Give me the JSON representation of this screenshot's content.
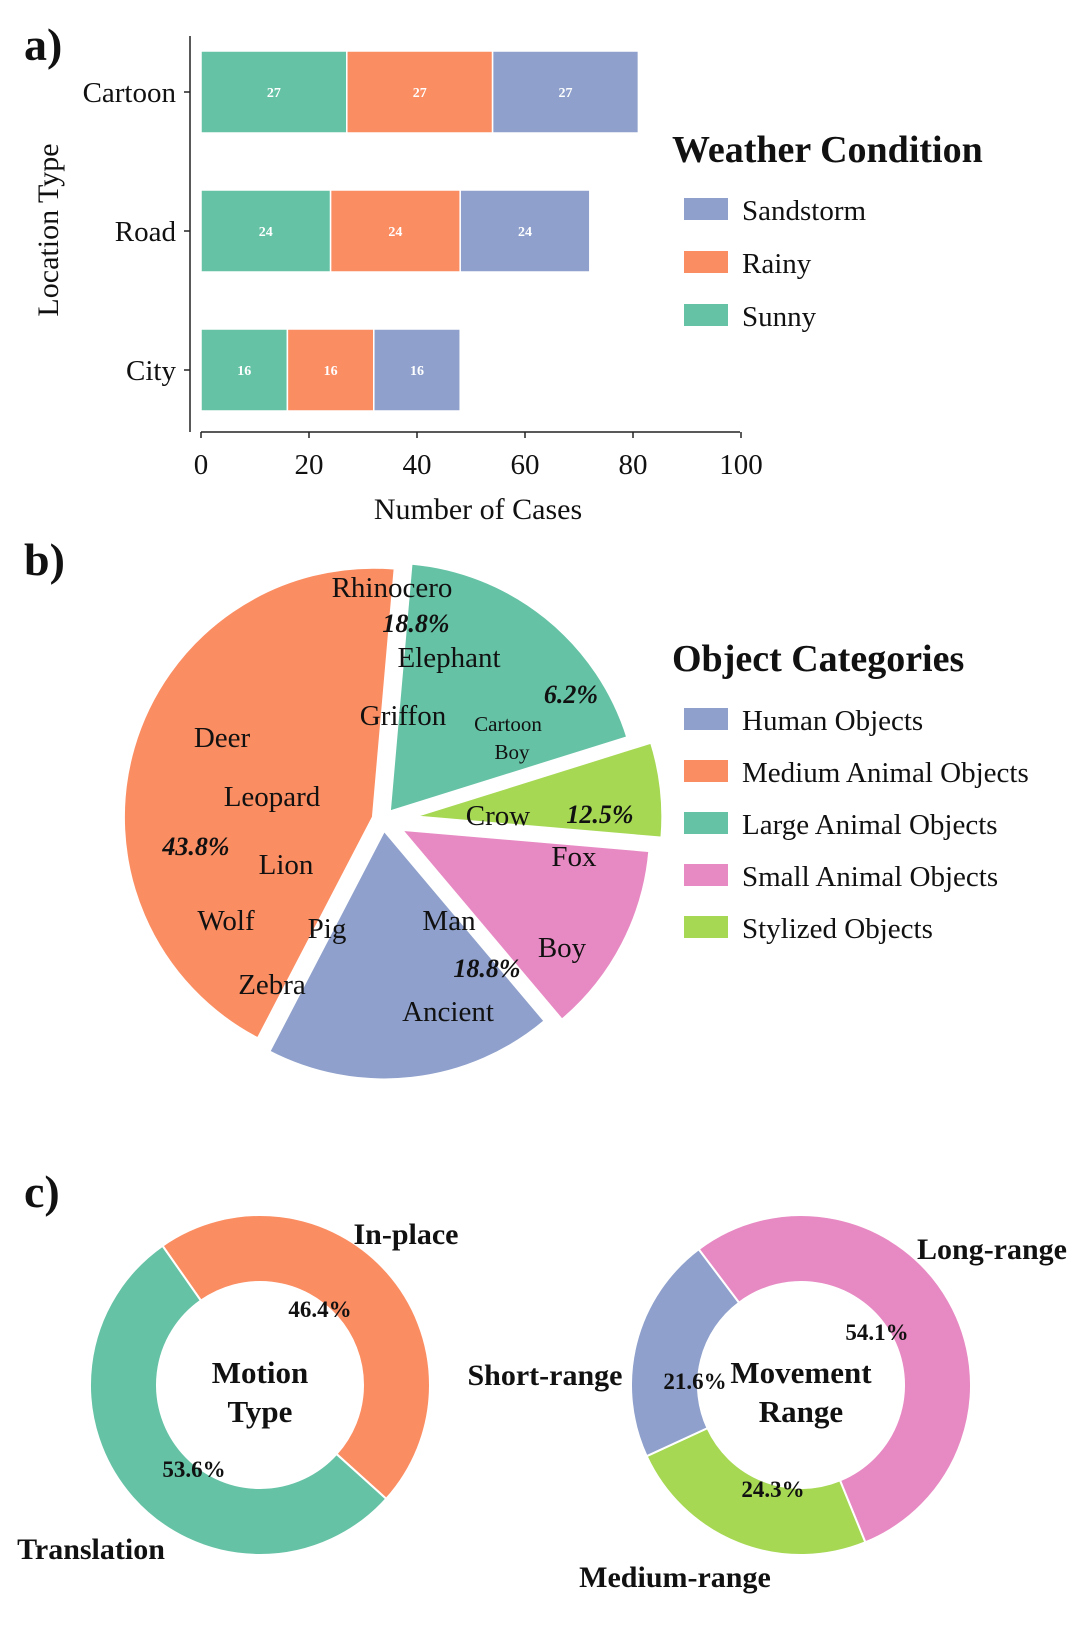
{
  "panels": {
    "a": {
      "label": "a)"
    },
    "b": {
      "label": "b)"
    },
    "c": {
      "label": "c)"
    }
  },
  "colors": {
    "sandstorm": "#8EA0CB",
    "rainy": "#FB8D62",
    "sunny": "#65C2A5",
    "human": "#8EA0CB",
    "medium_animal": "#FB8D62",
    "large_animal": "#65C2A5",
    "small_animal": "#E78AC3",
    "stylized": "#A6D853"
  },
  "chart_data": [
    {
      "type": "bar",
      "orientation": "horizontal",
      "stacked": true,
      "categories": [
        "Cartoon",
        "Road",
        "City"
      ],
      "series": [
        {
          "name": "Sunny",
          "values": [
            27,
            24,
            16
          ],
          "color": "#65C2A5"
        },
        {
          "name": "Rainy",
          "values": [
            27,
            24,
            16
          ],
          "color": "#FB8D62"
        },
        {
          "name": "Sandstorm",
          "values": [
            27,
            24,
            16
          ],
          "color": "#8EA0CB"
        }
      ],
      "xlabel": "Number of Cases",
      "ylabel": "Location Type",
      "xlim": [
        0,
        100
      ],
      "xticks": [
        "0",
        "20",
        "40",
        "60",
        "80",
        "100"
      ],
      "legend_title": "Weather Condition",
      "legend_order": [
        "Sandstorm",
        "Rainy",
        "Sunny"
      ],
      "legend_placement": "right",
      "grid": false
    },
    {
      "type": "pie",
      "legend_title": "Object Categories",
      "legend_placement": "right",
      "slices": [
        {
          "name": "Human Objects",
          "value": 18.8,
          "label": "18.8%",
          "items": [
            "Man",
            "Boy",
            "Ancient"
          ],
          "color": "#8EA0CB"
        },
        {
          "name": "Medium Animal Objects",
          "value": 43.8,
          "label": "43.8%",
          "items": [
            "Deer",
            "Leopard",
            "Lion",
            "Wolf",
            "Pig",
            "Zebra"
          ],
          "color": "#FB8D62"
        },
        {
          "name": "Large Animal Objects",
          "value": 18.8,
          "label": "18.8%",
          "items": [
            "Rhinocero",
            "Elephant",
            "Griffon"
          ],
          "color": "#65C2A5"
        },
        {
          "name": "Small Animal Objects",
          "value": 12.5,
          "label": "12.5%",
          "items": [
            "Crow",
            "Fox"
          ],
          "color": "#E78AC3"
        },
        {
          "name": "Stylized Objects",
          "value": 6.2,
          "label": "6.2%",
          "items": [
            "Cartoon",
            "Boy"
          ],
          "color": "#A6D853"
        }
      ]
    },
    {
      "type": "pie",
      "donut": true,
      "center_label": [
        "Motion",
        "Type"
      ],
      "slices": [
        {
          "name": "In-place",
          "value": 46.4,
          "label": "46.4%",
          "color": "#FB8D62"
        },
        {
          "name": "Translation",
          "value": 53.6,
          "label": "53.6%",
          "color": "#65C2A5"
        }
      ]
    },
    {
      "type": "pie",
      "donut": true,
      "center_label": [
        "Movement",
        "Range"
      ],
      "slices": [
        {
          "name": "Long-range",
          "value": 54.1,
          "label": "54.1%",
          "color": "#E78AC3"
        },
        {
          "name": "Medium-range",
          "value": 24.3,
          "label": "24.3%",
          "color": "#A6D853"
        },
        {
          "name": "Short-range",
          "value": 21.6,
          "label": "21.6%",
          "color": "#8EA0CB"
        }
      ]
    }
  ]
}
